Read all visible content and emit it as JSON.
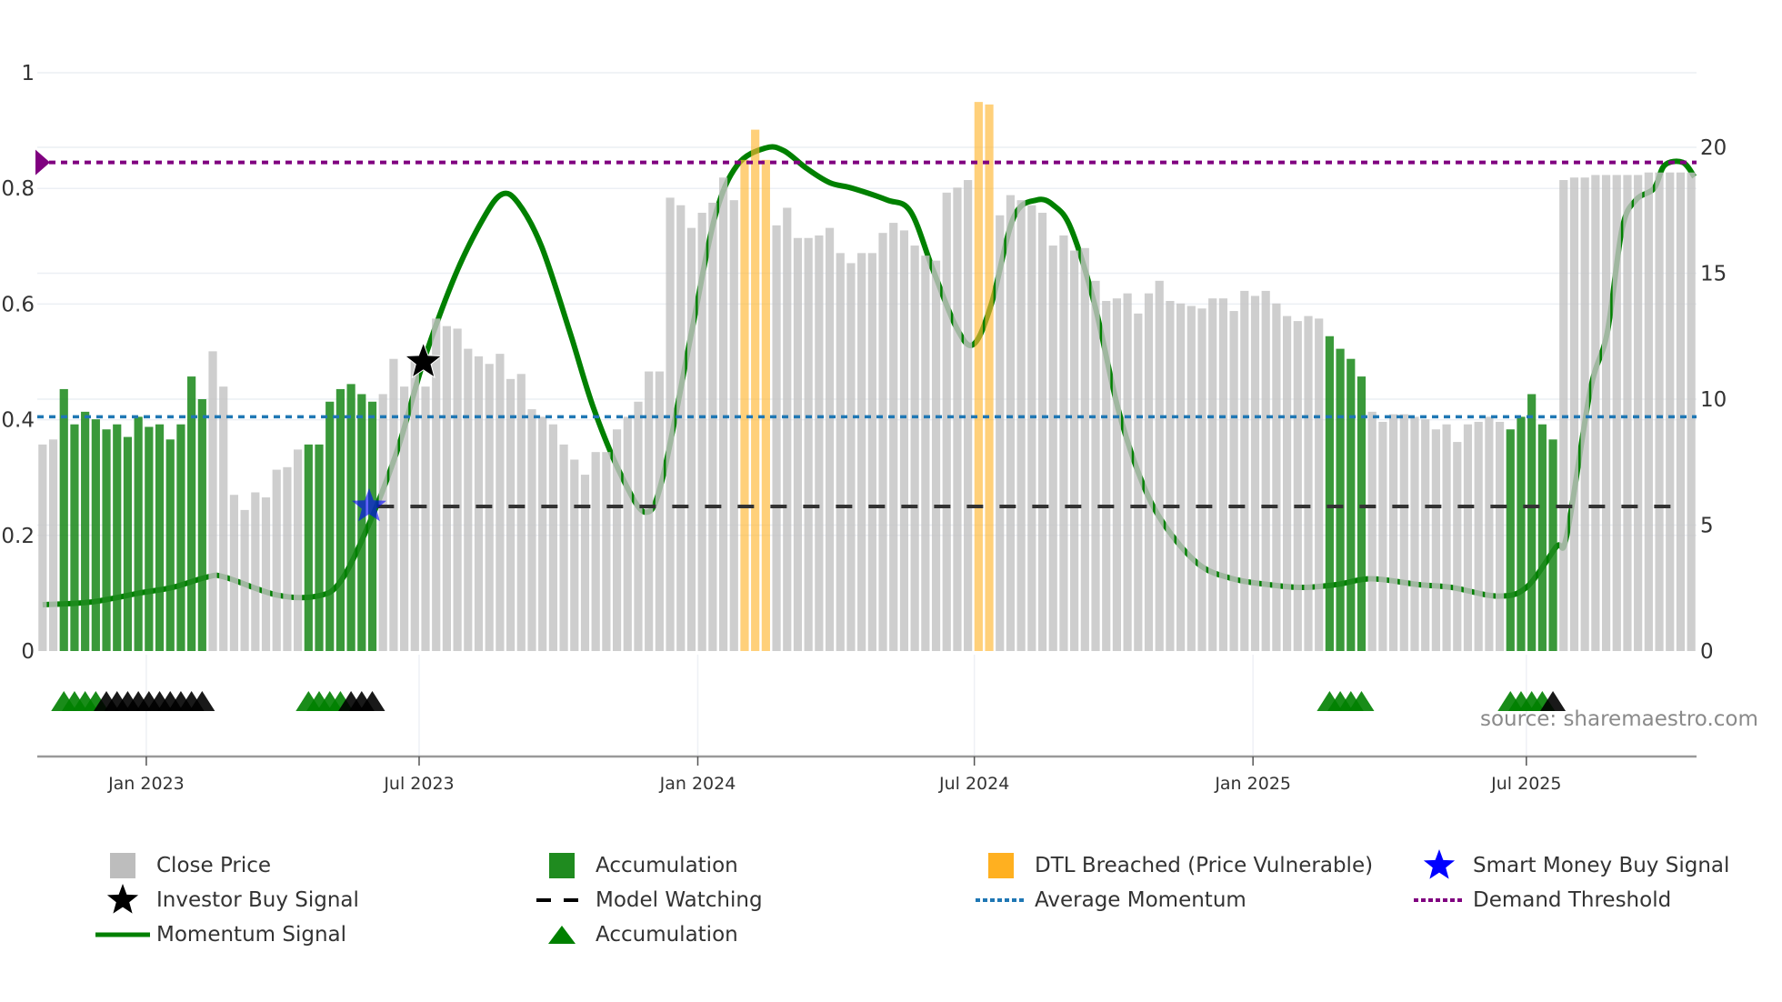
{
  "chart_data": {
    "type": "bar",
    "title": "",
    "colors": {
      "close": "#c3c3c3",
      "accumulation": "#1f8b1f",
      "dtl": "#ffb733",
      "momentum": "#008000",
      "average": "#1f77b4",
      "demand": "#800080",
      "smart_money": "#0000ff",
      "investor": "#000000",
      "watching": "#333333"
    },
    "left_axis": {
      "range": [
        0,
        1
      ],
      "ticks": [
        0,
        0.2,
        0.4,
        0.6,
        0.8,
        1
      ],
      "tick_labels": [
        "0",
        "0.2",
        "0.4",
        "0.6",
        "0.8",
        "1"
      ]
    },
    "right_axis": {
      "range": [
        0,
        23
      ],
      "ticks": [
        0,
        5,
        10,
        15,
        20
      ],
      "tick_labels": [
        "0",
        "5",
        "10",
        "15",
        "20"
      ]
    },
    "x_ticks": [
      {
        "week": 9.75,
        "label": "Jan 2023"
      },
      {
        "week": 35.4,
        "label": "Jul 2023"
      },
      {
        "week": 61.6,
        "label": "Jan 2024"
      },
      {
        "week": 87.6,
        "label": "Jul 2024"
      },
      {
        "week": 113.8,
        "label": "Jan 2025"
      },
      {
        "week": 139.5,
        "label": "Jul 2025"
      }
    ],
    "close_price": [
      8.2,
      8.4,
      10.4,
      9.0,
      9.5,
      9.2,
      8.8,
      9.0,
      8.5,
      9.3,
      8.9,
      9.0,
      8.4,
      9.0,
      10.9,
      10.0,
      11.9,
      10.5,
      6.2,
      5.6,
      6.3,
      6.1,
      7.2,
      7.3,
      8.0,
      8.2,
      8.2,
      9.9,
      10.4,
      10.6,
      10.2,
      9.9,
      10.2,
      11.6,
      10.5,
      11.7,
      10.5,
      13.2,
      12.9,
      12.8,
      12.0,
      11.7,
      11.4,
      11.8,
      10.8,
      11.0,
      9.6,
      9.3,
      9.0,
      8.2,
      7.6,
      7.0,
      7.9,
      7.9,
      8.8,
      9.3,
      9.9,
      11.1,
      11.1,
      18.0,
      17.7,
      16.8,
      17.4,
      17.8,
      18.8,
      17.9,
      19.5,
      20.7,
      19.5,
      16.9,
      17.6,
      16.4,
      16.4,
      16.5,
      16.8,
      15.8,
      15.4,
      15.8,
      15.8,
      16.6,
      17.0,
      16.7,
      16.1,
      15.7,
      15.5,
      18.2,
      18.4,
      18.7,
      21.8,
      21.7,
      17.3,
      18.1,
      17.9,
      17.7,
      17.4,
      16.1,
      16.5,
      15.9,
      16.0,
      14.7,
      13.9,
      14.0,
      14.2,
      13.4,
      14.2,
      14.7,
      13.9,
      13.8,
      13.7,
      13.6,
      14.0,
      14.0,
      13.5,
      14.3,
      14.1,
      14.3,
      13.8,
      13.3,
      13.1,
      13.3,
      13.2,
      12.5,
      12.0,
      11.6,
      10.9,
      9.5,
      9.1,
      9.4,
      9.4,
      9.3,
      9.2,
      8.8,
      9.0,
      8.3,
      9.0,
      9.1,
      9.3,
      9.1,
      8.8,
      9.3,
      10.2,
      9.0,
      8.4,
      18.7,
      18.8,
      18.8,
      18.9,
      18.9,
      18.9,
      18.9,
      18.9,
      19.0,
      19.0,
      19.0,
      19.0,
      19.0
    ],
    "accumulation_bars": [
      2,
      3,
      4,
      5,
      6,
      7,
      8,
      9,
      10,
      11,
      12,
      13,
      14,
      15,
      25,
      26,
      27,
      28,
      29,
      30,
      31,
      121,
      122,
      123,
      124,
      138,
      139,
      140,
      141,
      142
    ],
    "dtl_breached_bars": [
      66,
      67,
      68,
      88,
      89
    ],
    "momentum_signal": [
      [
        0,
        0.08
      ],
      [
        4.7,
        0.085
      ],
      [
        9,
        0.1
      ],
      [
        12.2,
        0.11
      ],
      [
        15.5,
        0.128
      ],
      [
        17.1,
        0.128
      ],
      [
        22,
        0.097
      ],
      [
        25.8,
        0.095
      ],
      [
        28,
        0.12
      ],
      [
        30.7,
        0.22
      ],
      [
        33.4,
        0.35
      ],
      [
        35.8,
        0.5
      ],
      [
        38.8,
        0.65
      ],
      [
        41.5,
        0.75
      ],
      [
        43.2,
        0.79
      ],
      [
        44.7,
        0.775
      ],
      [
        46.9,
        0.7
      ],
      [
        49.6,
        0.55
      ],
      [
        51.8,
        0.42
      ],
      [
        54.5,
        0.3
      ],
      [
        56.7,
        0.24
      ],
      [
        58.3,
        0.3
      ],
      [
        61,
        0.55
      ],
      [
        63.2,
        0.75
      ],
      [
        65.3,
        0.84
      ],
      [
        68,
        0.87
      ],
      [
        69.7,
        0.865
      ],
      [
        71.8,
        0.835
      ],
      [
        74,
        0.81
      ],
      [
        76.2,
        0.8
      ],
      [
        79.4,
        0.78
      ],
      [
        81.6,
        0.76
      ],
      [
        83.7,
        0.66
      ],
      [
        85.9,
        0.56
      ],
      [
        87.5,
        0.53
      ],
      [
        89.2,
        0.6
      ],
      [
        91.3,
        0.75
      ],
      [
        93.5,
        0.78
      ],
      [
        95.1,
        0.77
      ],
      [
        96.7,
        0.73
      ],
      [
        98.9,
        0.6
      ],
      [
        101.1,
        0.42
      ],
      [
        103.2,
        0.3
      ],
      [
        105.4,
        0.22
      ],
      [
        108.7,
        0.15
      ],
      [
        111.9,
        0.125
      ],
      [
        115.2,
        0.115
      ],
      [
        118.4,
        0.11
      ],
      [
        121.7,
        0.115
      ],
      [
        124.9,
        0.125
      ],
      [
        129.3,
        0.115
      ],
      [
        132.5,
        0.11
      ],
      [
        136.8,
        0.095
      ],
      [
        139.5,
        0.11
      ],
      [
        142.3,
        0.18
      ],
      [
        143.3,
        0.2
      ],
      [
        145.5,
        0.45
      ],
      [
        147.1,
        0.55
      ],
      [
        148.5,
        0.73
      ],
      [
        149.8,
        0.78
      ],
      [
        151.5,
        0.8
      ],
      [
        152.5,
        0.84
      ],
      [
        154.2,
        0.845
      ],
      [
        155.3,
        0.82
      ]
    ],
    "average_momentum": 0.405,
    "demand_threshold": 0.845,
    "model_watching": {
      "level": 0.25,
      "from_week": 31.5,
      "to_week": 154.5
    },
    "smart_money_buy_signals": [
      {
        "week": 30.7,
        "value": 0.25
      }
    ],
    "investor_buy_signals": [
      {
        "week": 35.8,
        "value": 0.5
      }
    ],
    "accumulation_markers": [
      {
        "week": 2,
        "kind": "green"
      },
      {
        "week": 3,
        "kind": "green"
      },
      {
        "week": 4,
        "kind": "green"
      },
      {
        "week": 5,
        "kind": "green"
      },
      {
        "week": 6,
        "kind": "black"
      },
      {
        "week": 7,
        "kind": "black"
      },
      {
        "week": 8,
        "kind": "black"
      },
      {
        "week": 9,
        "kind": "black"
      },
      {
        "week": 10,
        "kind": "black"
      },
      {
        "week": 11,
        "kind": "black"
      },
      {
        "week": 12,
        "kind": "black"
      },
      {
        "week": 13,
        "kind": "black"
      },
      {
        "week": 14,
        "kind": "black"
      },
      {
        "week": 15,
        "kind": "black"
      },
      {
        "week": 25,
        "kind": "green"
      },
      {
        "week": 26,
        "kind": "green"
      },
      {
        "week": 27,
        "kind": "green"
      },
      {
        "week": 28,
        "kind": "green"
      },
      {
        "week": 29,
        "kind": "black"
      },
      {
        "week": 30,
        "kind": "black"
      },
      {
        "week": 31,
        "kind": "black"
      },
      {
        "week": 121,
        "kind": "green"
      },
      {
        "week": 122,
        "kind": "green"
      },
      {
        "week": 123,
        "kind": "green"
      },
      {
        "week": 124,
        "kind": "green"
      },
      {
        "week": 138,
        "kind": "green"
      },
      {
        "week": 139,
        "kind": "green"
      },
      {
        "week": 140,
        "kind": "green"
      },
      {
        "week": 141,
        "kind": "green"
      },
      {
        "week": 142,
        "kind": "black"
      }
    ],
    "legend": {
      "close_price": "Close Price",
      "accumulation_bar": "Accumulation",
      "dtl": "DTL Breached (Price Vulnerable)",
      "smart_money": "Smart Money Buy Signal",
      "investor": "Investor Buy Signal",
      "model_watching": "Model Watching",
      "average_momentum": "Average Momentum",
      "demand_threshold": "Demand Threshold",
      "momentum_signal": "Momentum Signal",
      "accumulation_marker": "Accumulation"
    },
    "source": "source: sharemaestro.com"
  }
}
